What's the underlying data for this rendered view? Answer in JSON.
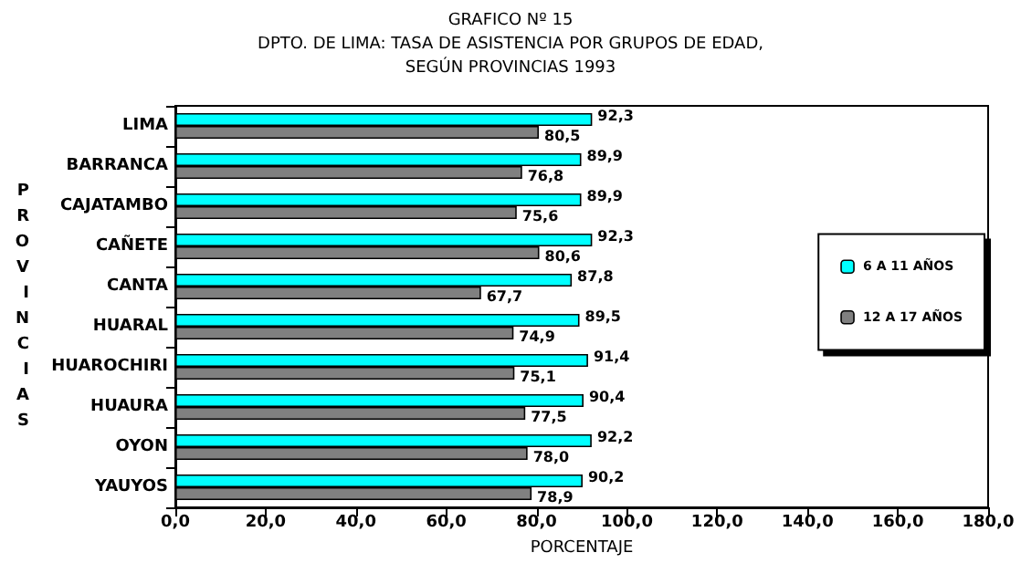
{
  "chart_data": {
    "type": "bar",
    "orientation": "horizontal",
    "title": "GRAFICO Nº 15",
    "subtitle": "DPTO. DE LIMA: TASA DE ASISTENCIA POR GRUPOS DE EDAD,\nSEGÚN PROVINCIAS 1993",
    "xlabel": "PORCENTAJE",
    "ylabel": "PROVINCIAS",
    "categories": [
      "LIMA",
      "BARRANCA",
      "CAJATAMBO",
      "CAÑETE",
      "CANTA",
      "HUARAL",
      "HUAROCHIRI",
      "HUAURA",
      "OYON",
      "YAUYOS"
    ],
    "series": [
      {
        "name": "6 A 11 AÑOS",
        "color": "#00ffff",
        "values": [
          92.3,
          89.9,
          89.9,
          92.3,
          87.8,
          89.5,
          91.4,
          90.4,
          92.2,
          90.2
        ],
        "value_labels": [
          "92,3",
          "89,9",
          "89,9",
          "92,3",
          "87,8",
          "89,5",
          "91,4",
          "90,4",
          "92,2",
          "90,2"
        ]
      },
      {
        "name": "12 A 17 AÑOS",
        "color": "#808080",
        "values": [
          80.5,
          76.8,
          75.6,
          80.6,
          67.7,
          74.9,
          75.1,
          77.5,
          78.0,
          78.9
        ],
        "value_labels": [
          "80,5",
          "76,8",
          "75,6",
          "80,6",
          "67,7",
          "74,9",
          "75,1",
          "77,5",
          "78,0",
          "78,9"
        ]
      }
    ],
    "xlim": [
      0,
      180
    ],
    "xticks": [
      {
        "value": 0,
        "label": "0,0"
      },
      {
        "value": 20,
        "label": "20,0"
      },
      {
        "value": 40,
        "label": "40,0"
      },
      {
        "value": 60,
        "label": "60,0"
      },
      {
        "value": 80,
        "label": "80,0"
      },
      {
        "value": 100,
        "label": "100,0"
      },
      {
        "value": 120,
        "label": "120,0"
      },
      {
        "value": 140,
        "label": "140,0"
      },
      {
        "value": 160,
        "label": "160,0"
      },
      {
        "value": 180,
        "label": "180,0"
      }
    ],
    "legend": "right",
    "grid": false
  }
}
